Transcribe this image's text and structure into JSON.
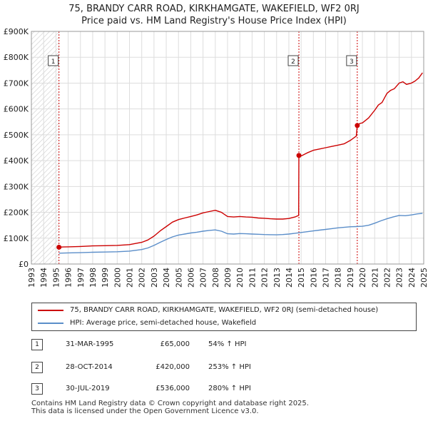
{
  "title_line1": "75, BRANDY CARR ROAD, KIRKHAMGATE, WAKEFIELD, WF2 0RJ",
  "title_line2": "Price paid vs. HM Land Registry's House Price Index (HPI)",
  "colors": {
    "property": "#cc0000",
    "hpi": "#5b8ec9",
    "hatch": "#cccccc",
    "marker_line": "#cc0000"
  },
  "legend": {
    "property_label": "75, BRANDY CARR ROAD, KIRKHAMGATE, WAKEFIELD, WF2 0RJ (semi-detached house)",
    "hpi_label": "HPI: Average price, semi-detached house, Wakefield"
  },
  "sales": [
    {
      "num": "1",
      "date": "31-MAR-1995",
      "price": "£65,000",
      "hpi": "54% ↑ HPI"
    },
    {
      "num": "2",
      "date": "28-OCT-2014",
      "price": "£420,000",
      "hpi": "253% ↑ HPI"
    },
    {
      "num": "3",
      "date": "30-JUL-2019",
      "price": "£536,000",
      "hpi": "280% ↑ HPI"
    }
  ],
  "footer": {
    "line1": "Contains HM Land Registry data © Crown copyright and database right 2025.",
    "line2": "This data is licensed under the Open Government Licence v3.0."
  },
  "chart_data": {
    "type": "line",
    "title": "Price paid vs. HM Land Registry's House Price Index (HPI)",
    "xlim": [
      1993,
      2025
    ],
    "ylim": [
      0,
      900000
    ],
    "y_ticks": [
      0,
      100000,
      200000,
      300000,
      400000,
      500000,
      600000,
      700000,
      800000,
      900000
    ],
    "y_tick_labels": [
      "£0",
      "£100K",
      "£200K",
      "£300K",
      "£400K",
      "£500K",
      "£600K",
      "£700K",
      "£800K",
      "£900K"
    ],
    "x_ticks": [
      1993,
      1994,
      1995,
      1996,
      1997,
      1998,
      1999,
      2000,
      2001,
      2002,
      2003,
      2004,
      2005,
      2006,
      2007,
      2008,
      2009,
      2010,
      2011,
      2012,
      2013,
      2014,
      2015,
      2016,
      2017,
      2018,
      2019,
      2020,
      2021,
      2022,
      2023,
      2024,
      2025
    ],
    "hatched_before": 1995.25,
    "grid": true,
    "series": [
      {
        "name": "75, BRANDY CARR ROAD, KIRKHAMGATE, WAKEFIELD, WF2 0RJ (semi-detached house)",
        "x": [
          1995.25,
          1995.6,
          1996,
          1997,
          1998,
          1999,
          2000,
          2001,
          2002,
          2002.5,
          2003,
          2003.5,
          2004,
          2004.5,
          2005,
          2005.5,
          2006,
          2006.5,
          2007,
          2007.5,
          2008,
          2008.5,
          2009,
          2009.5,
          2010,
          2010.5,
          2011,
          2011.5,
          2012,
          2012.5,
          2013,
          2013.5,
          2014,
          2014.5,
          2014.8,
          2014.82,
          2015,
          2015.5,
          2016,
          2016.5,
          2017,
          2017.5,
          2018,
          2018.5,
          2019,
          2019.5,
          2019.58,
          2019.8,
          2020,
          2020.5,
          2021,
          2021.3,
          2021.6,
          2022,
          2022.3,
          2022.6,
          2023,
          2023.3,
          2023.6,
          2024,
          2024.3,
          2024.6,
          2024.9
        ],
        "values": [
          65000,
          66000,
          66500,
          68000,
          70000,
          71000,
          72000,
          75000,
          84000,
          93000,
          108000,
          128000,
          145000,
          162000,
          172000,
          178000,
          184000,
          190000,
          198000,
          203000,
          208000,
          200000,
          184000,
          182000,
          184000,
          182000,
          181000,
          178000,
          177000,
          175000,
          174000,
          174000,
          176000,
          182000,
          188000,
          420000,
          418000,
          430000,
          440000,
          445000,
          450000,
          455000,
          460000,
          465000,
          478000,
          495000,
          536000,
          544000,
          546000,
          565000,
          595000,
          615000,
          625000,
          660000,
          672000,
          678000,
          700000,
          705000,
          695000,
          700000,
          708000,
          720000,
          740000
        ]
      },
      {
        "name": "HPI: Average price, semi-detached house, Wakefield",
        "x": [
          1995.25,
          1996,
          1997,
          1998,
          1999,
          2000,
          2001,
          2002,
          2002.5,
          2003,
          2003.5,
          2004,
          2004.5,
          2005,
          2005.5,
          2006,
          2006.5,
          2007,
          2007.5,
          2008,
          2008.5,
          2009,
          2009.5,
          2010,
          2010.5,
          2011,
          2011.5,
          2012,
          2012.5,
          2013,
          2013.5,
          2014,
          2014.5,
          2015,
          2015.5,
          2016,
          2016.5,
          2017,
          2017.5,
          2018,
          2018.5,
          2019,
          2019.5,
          2020,
          2020.5,
          2021,
          2021.5,
          2022,
          2022.5,
          2023,
          2023.5,
          2024,
          2024.5,
          2024.9
        ],
        "values": [
          42000,
          43000,
          44000,
          45500,
          46500,
          47500,
          50000,
          56000,
          62000,
          72000,
          84000,
          95000,
          105000,
          112000,
          116000,
          120000,
          123000,
          127000,
          130000,
          132000,
          127000,
          117000,
          116000,
          118000,
          117000,
          116000,
          115000,
          114000,
          113500,
          113000,
          114000,
          116000,
          119000,
          122000,
          125000,
          128000,
          131000,
          134000,
          137000,
          140000,
          142000,
          144000,
          145000,
          146000,
          150000,
          158000,
          167000,
          175000,
          182000,
          188000,
          187000,
          190000,
          194000,
          196000
        ]
      }
    ],
    "sale_markers": [
      {
        "label": "1",
        "x": 1995.25,
        "y": 65000
      },
      {
        "label": "2",
        "x": 2014.82,
        "y": 420000
      },
      {
        "label": "3",
        "x": 2019.58,
        "y": 536000
      }
    ]
  }
}
